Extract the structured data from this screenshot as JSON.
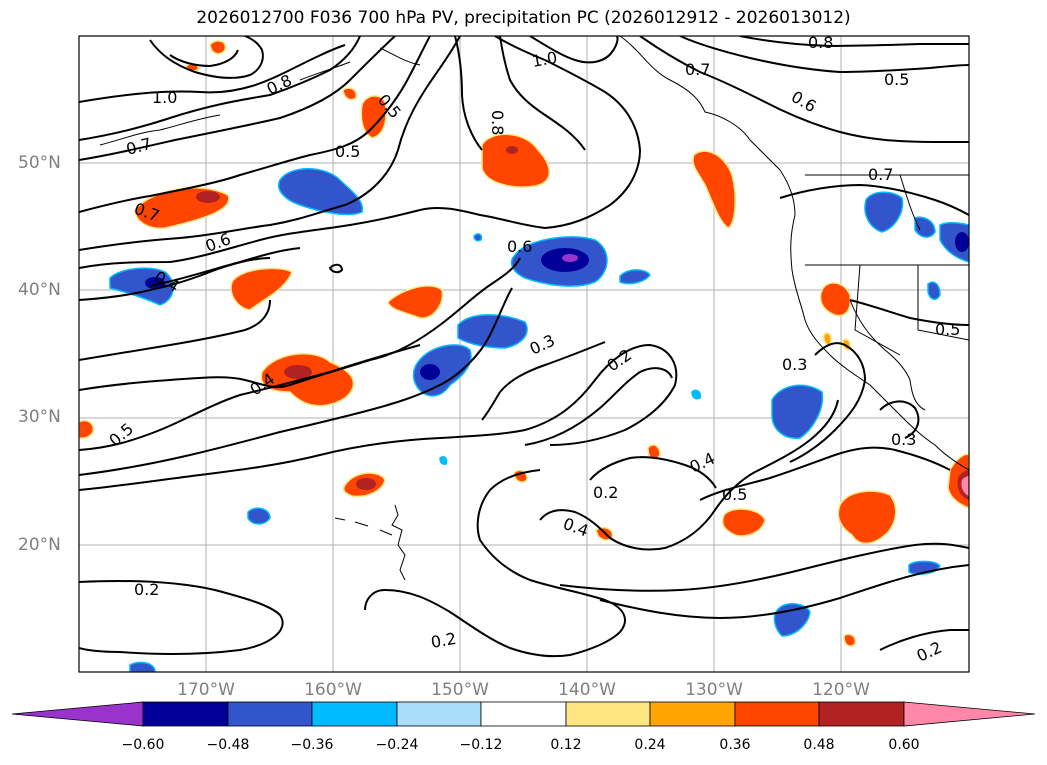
{
  "title": "2026012700 F036 700 hPa PV, precipitation PC (2026012912 - 2026013012)",
  "latitude_labels": [
    "50°N",
    "40°N",
    "30°N",
    "20°N"
  ],
  "longitude_labels": [
    "170°W",
    "160°W",
    "150°W",
    "140°W",
    "130°W",
    "120°W"
  ],
  "colorbar": {
    "ticks": [
      "−0.60",
      "−0.48",
      "−0.36",
      "−0.24",
      "−0.12",
      "0.12",
      "0.24",
      "0.36",
      "0.48",
      "0.60"
    ],
    "colors": [
      "#9933cc",
      "#000099",
      "#3355cc",
      "#00bbff",
      "#aaddf8",
      "#ffffff",
      "#ffe680",
      "#ffa500",
      "#ff4500",
      "#b22222",
      "#ff88aa"
    ]
  },
  "contour_labels": [
    "1.0",
    "0.8",
    "0.5",
    "0.7",
    "0.7",
    "0.6",
    "0.4",
    "0.5",
    "0.8",
    "0.6",
    "1.0",
    "0.8",
    "0.7",
    "0.5",
    "0.6",
    "0.7",
    "0.5",
    "0.3",
    "0.2",
    "0.3",
    "0.3",
    "0.4",
    "0.5",
    "0.2",
    "0.4",
    "0.2",
    "0.2",
    "0.2",
    "0.5",
    "0.4"
  ]
}
